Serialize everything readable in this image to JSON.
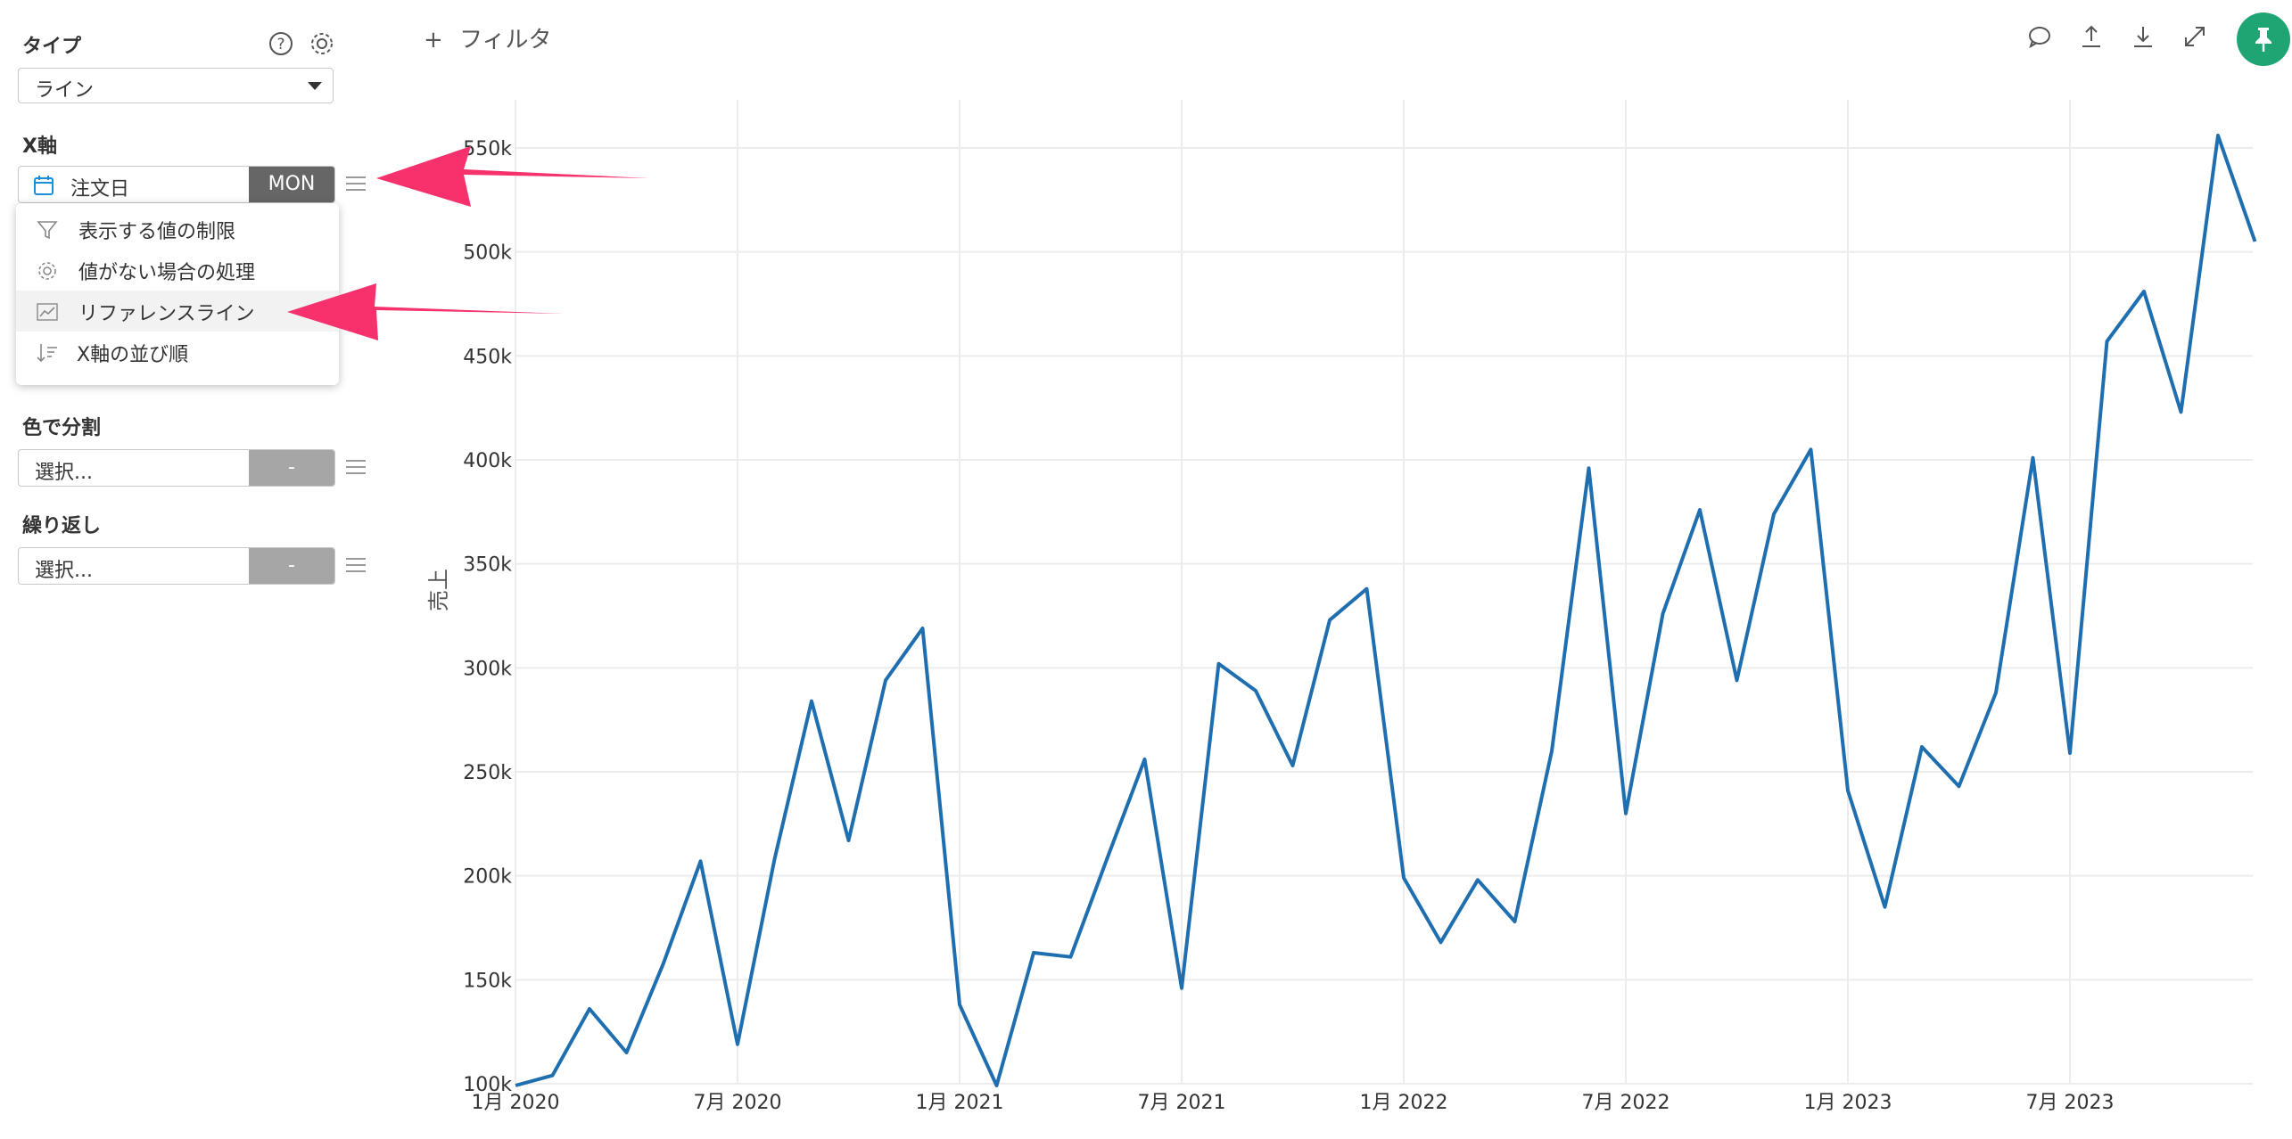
{
  "sidebar": {
    "type_label": "タイプ",
    "type_value": "ライン",
    "xaxis_label": "X軸",
    "xaxis_field": "注文日",
    "xaxis_unit": "MON",
    "menu": [
      {
        "label": "表示する値の制限",
        "icon": "filter-icon"
      },
      {
        "label": "値がない場合の処理",
        "icon": "gear-icon"
      },
      {
        "label": "リファレンスライン",
        "icon": "chart-line-icon"
      },
      {
        "label": "X軸の並び順",
        "icon": "sort-icon"
      }
    ],
    "color_label": "色で分割",
    "color_placeholder": "選択...",
    "color_btn": "-",
    "repeat_label": "繰り返し",
    "repeat_placeholder": "選択...",
    "repeat_btn": "-"
  },
  "toolbar": {
    "filter_label": "フィルタ",
    "filter_plus": "+"
  },
  "colors": {
    "line": "#1f6fb0",
    "arrow": "#f7316c",
    "pin": "#1fa573",
    "grid": "#ececec"
  },
  "chart_data": {
    "type": "line",
    "ylabel": "売上",
    "ylim": [
      100000,
      560000
    ],
    "y_ticks": [
      "100k",
      "150k",
      "200k",
      "250k",
      "300k",
      "350k",
      "400k",
      "450k",
      "500k",
      "550k"
    ],
    "x_ticks": [
      "1月 2020",
      "7月 2020",
      "1月 2021",
      "7月 2021",
      "1月 2022",
      "7月 2022",
      "1月 2023",
      "7月 2023"
    ],
    "x": [
      "2020-01",
      "2020-02",
      "2020-03",
      "2020-04",
      "2020-05",
      "2020-06",
      "2020-07",
      "2020-08",
      "2020-09",
      "2020-10",
      "2020-11",
      "2020-12",
      "2021-01",
      "2021-02",
      "2021-03",
      "2021-04",
      "2021-05",
      "2021-06",
      "2021-07",
      "2021-08",
      "2021-09",
      "2021-10",
      "2021-11",
      "2021-12",
      "2022-01",
      "2022-02",
      "2022-03",
      "2022-04",
      "2022-05",
      "2022-06",
      "2022-07",
      "2022-08",
      "2022-09",
      "2022-10",
      "2022-11",
      "2022-12",
      "2023-01",
      "2023-02",
      "2023-03",
      "2023-04",
      "2023-05",
      "2023-06",
      "2023-07",
      "2023-08",
      "2023-09",
      "2023-10",
      "2023-11",
      "2023-12"
    ],
    "series": [
      {
        "values": [
          99000,
          104000,
          136000,
          115000,
          158000,
          207000,
          119000,
          208000,
          284000,
          217000,
          294000,
          319000,
          138000,
          99000,
          163000,
          161000,
          209000,
          256000,
          146000,
          302000,
          289000,
          253000,
          323000,
          338000,
          199000,
          168000,
          198000,
          178000,
          260000,
          396000,
          230000,
          326000,
          376000,
          294000,
          374000,
          405000,
          241000,
          185000,
          262000,
          243000,
          288000,
          401000,
          259000,
          457000,
          481000,
          423000,
          556000,
          505000
        ]
      }
    ]
  }
}
